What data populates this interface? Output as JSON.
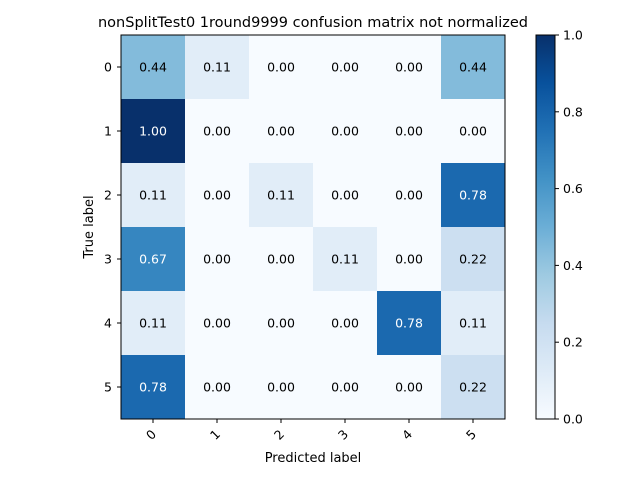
{
  "chart_data": {
    "type": "heatmap",
    "title": "nonSplitTest0 1round9999 confusion matrix not normalized",
    "xlabel": "Predicted label",
    "ylabel": "True label",
    "x_categories": [
      "0",
      "1",
      "2",
      "3",
      "4",
      "5"
    ],
    "y_categories": [
      "0",
      "1",
      "2",
      "3",
      "4",
      "5"
    ],
    "values": [
      [
        0.44,
        0.11,
        0.0,
        0.0,
        0.0,
        0.44
      ],
      [
        1.0,
        0.0,
        0.0,
        0.0,
        0.0,
        0.0
      ],
      [
        0.11,
        0.0,
        0.11,
        0.0,
        0.0,
        0.78
      ],
      [
        0.67,
        0.0,
        0.0,
        0.11,
        0.0,
        0.22
      ],
      [
        0.11,
        0.0,
        0.0,
        0.0,
        0.78,
        0.11
      ],
      [
        0.78,
        0.0,
        0.0,
        0.0,
        0.0,
        0.22
      ]
    ],
    "value_format": "0.00",
    "colormap": "Blues",
    "colorbar": {
      "range": [
        0.0,
        1.0
      ],
      "ticks": [
        "0.0",
        "0.2",
        "0.4",
        "0.6",
        "0.8",
        "1.0"
      ]
    },
    "x_tick_rotation": "45",
    "grid": false
  }
}
